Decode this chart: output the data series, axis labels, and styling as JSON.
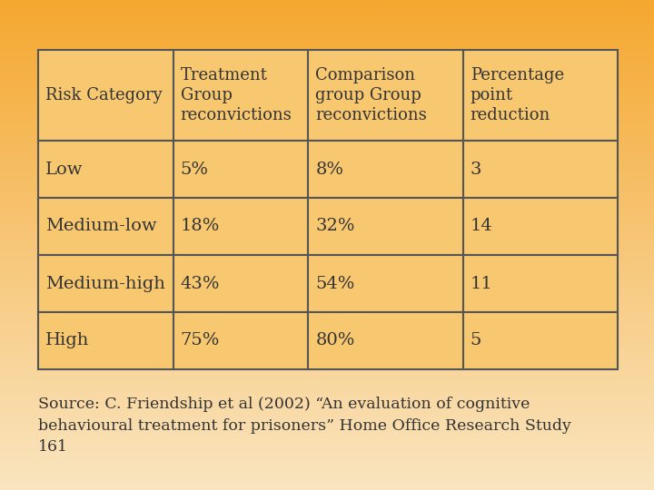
{
  "col_headers": [
    "Risk Category",
    "Treatment\nGroup\nreconvictions",
    "Comparison\ngroup Group\nreconvictions",
    "Percentage\npoint\nreduction"
  ],
  "rows": [
    [
      "Low",
      "5%",
      "8%",
      "3"
    ],
    [
      "Medium-low",
      "18%",
      "32%",
      "14"
    ],
    [
      "Medium-high",
      "43%",
      "54%",
      "11"
    ],
    [
      "High",
      "75%",
      "80%",
      "5"
    ]
  ],
  "source_text": "Source: C. Friendship et al (2002) “An evaluation of cognitive\nbehavioural treatment for prisoners” Home Office Research Study\n161",
  "bg_color_top": "#F5A830",
  "bg_color_bottom": "#FAE5C0",
  "table_fill_color": "#F8C870",
  "table_border_color": "#555555",
  "text_color": "#333333",
  "font_size_header": 13,
  "font_size_cell": 14,
  "font_size_source": 12.5
}
